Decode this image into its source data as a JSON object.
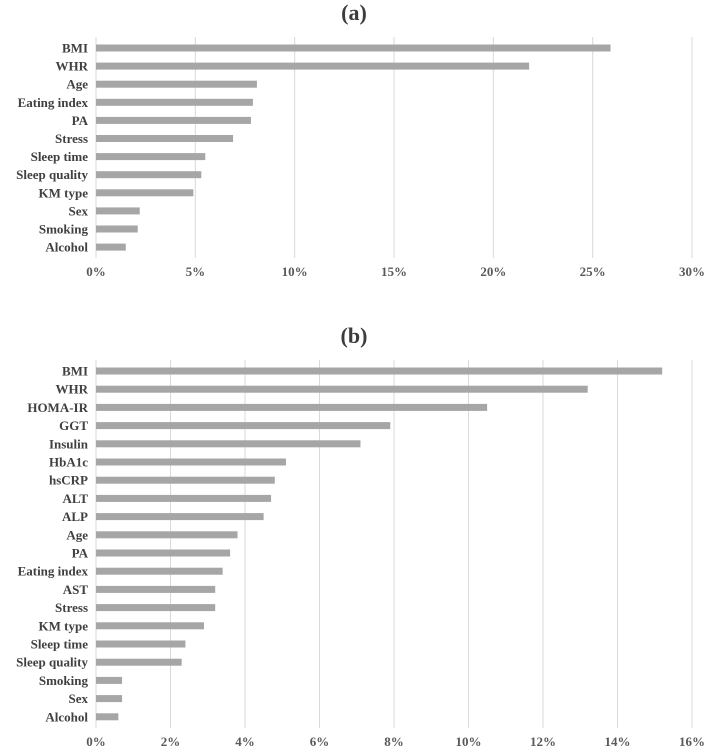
{
  "chart_data": [
    {
      "type": "bar",
      "orientation": "horizontal",
      "title": "(a)",
      "xlabel": "",
      "ylabel": "",
      "xlim": [
        0,
        30
      ],
      "ticks": [
        "0%",
        "5%",
        "10%",
        "15%",
        "20%",
        "25%",
        "30%"
      ],
      "grid": true,
      "legend": "none",
      "bar_color": "#a6a6a6",
      "categories": [
        "BMI",
        "WHR",
        "Age",
        "Eating index",
        "PA",
        "Stress",
        "Sleep time",
        "Sleep quality",
        "KM type",
        "Sex",
        "Smoking",
        "Alcohol"
      ],
      "values": [
        25.9,
        21.8,
        8.1,
        7.9,
        7.8,
        6.9,
        5.5,
        5.3,
        4.9,
        2.2,
        2.1,
        1.5
      ]
    },
    {
      "type": "bar",
      "orientation": "horizontal",
      "title": "(b)",
      "xlabel": "",
      "ylabel": "",
      "xlim": [
        0,
        16
      ],
      "ticks": [
        "0%",
        "2%",
        "4%",
        "6%",
        "8%",
        "10%",
        "12%",
        "14%",
        "16%"
      ],
      "grid": true,
      "legend": "none",
      "bar_color": "#a6a6a6",
      "categories": [
        "BMI",
        "WHR",
        "HOMA-IR",
        "GGT",
        "Insulin",
        "HbA1c",
        "hsCRP",
        "ALT",
        "ALP",
        "Age",
        "PA",
        "Eating index",
        "AST",
        "Stress",
        "KM type",
        "Sleep time",
        "Sleep quality",
        "Smoking",
        "Sex",
        "Alcohol"
      ],
      "values": [
        15.2,
        13.2,
        10.5,
        7.9,
        7.1,
        5.1,
        4.8,
        4.7,
        4.5,
        3.8,
        3.6,
        3.4,
        3.2,
        3.2,
        2.9,
        2.4,
        2.3,
        0.7,
        0.7,
        0.6
      ]
    }
  ]
}
